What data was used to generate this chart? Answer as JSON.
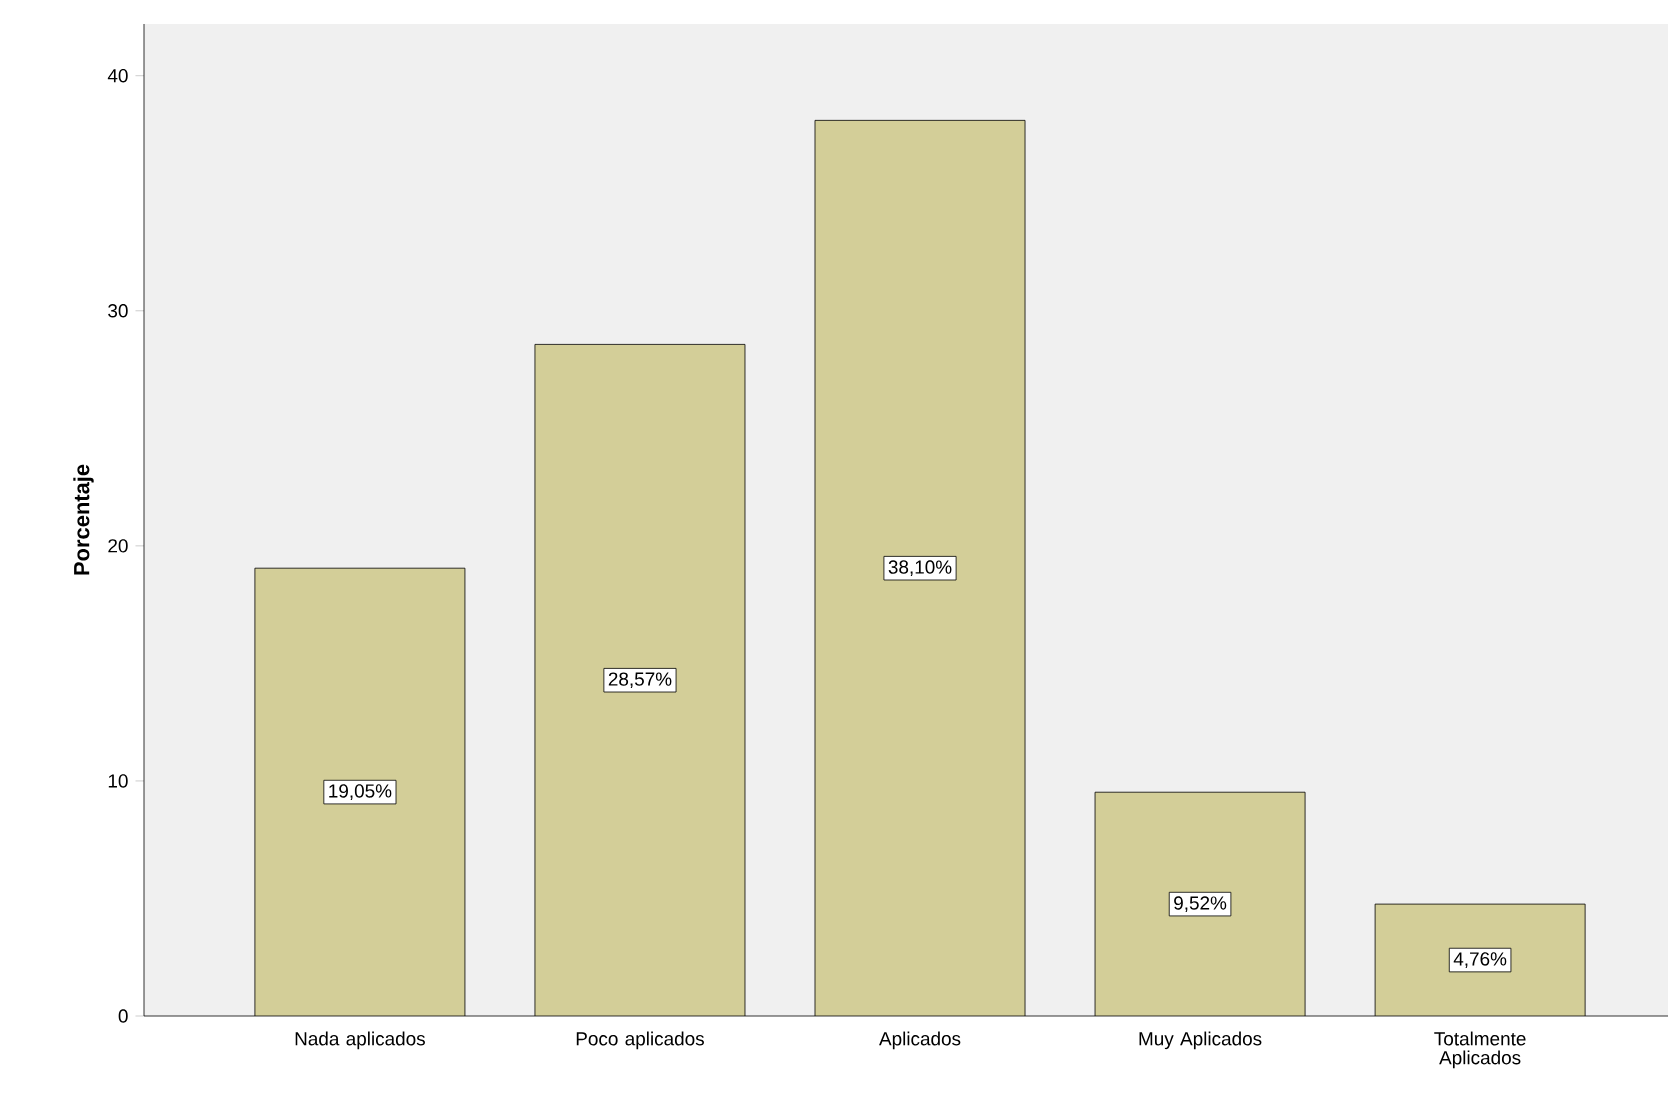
{
  "chart_data": {
    "type": "bar",
    "ylabel": "Porcentaje",
    "categories": [
      "Nada aplicados",
      "Poco aplicados",
      "Aplicados",
      "Muy Aplicados",
      "Totalmente Aplicados"
    ],
    "values": [
      19.05,
      28.57,
      38.1,
      9.52,
      4.76
    ],
    "value_labels": [
      "19,05%",
      "28,57%",
      "38,10%",
      "9,52%",
      "4,76%"
    ],
    "color": "#d3ce98",
    "ylim": [
      0,
      42.2
    ],
    "yticks": [
      0,
      10,
      20,
      30,
      40
    ],
    "grid": false
  }
}
